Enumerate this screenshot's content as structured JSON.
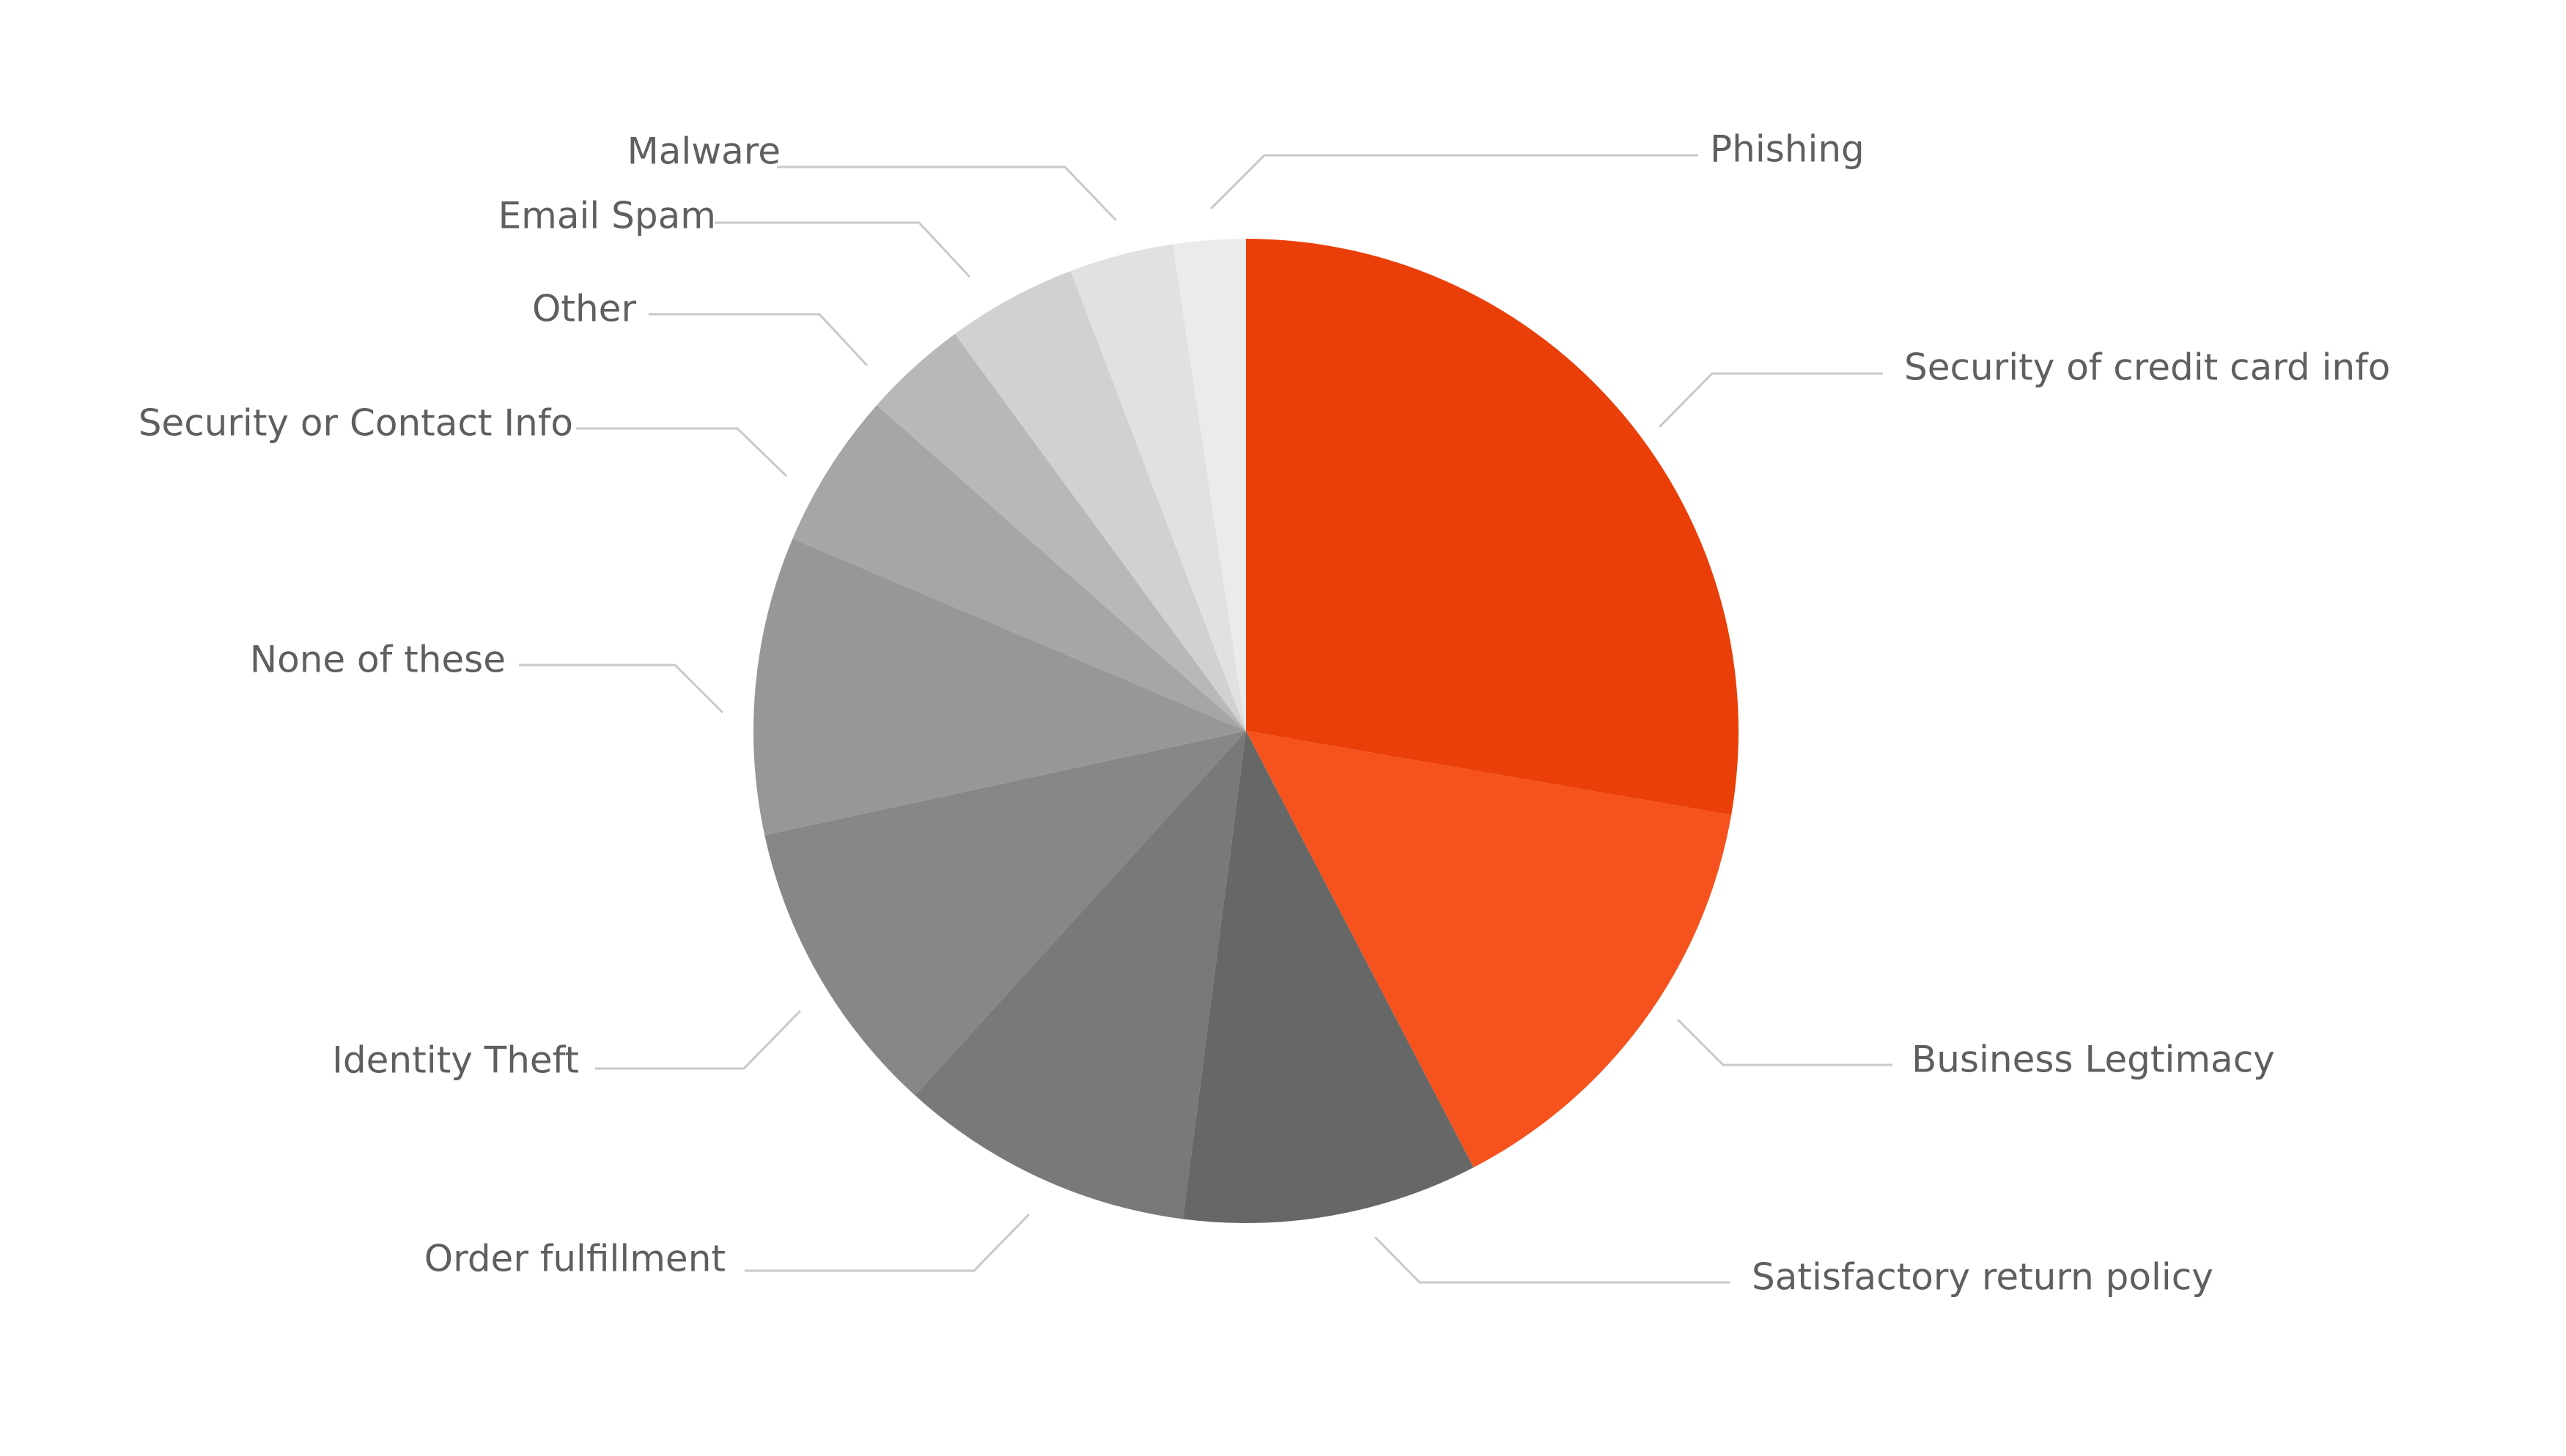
{
  "chart_data": {
    "type": "pie",
    "title": "",
    "start_angle_deg": 0,
    "direction": "clockwise",
    "slices": [
      {
        "label": "Security of credit card info",
        "value": 29.2,
        "color": "#EA3F08"
      },
      {
        "label": "Business Legtimacy",
        "value": 15.4,
        "color": "#F6521E"
      },
      {
        "label": "Satisfactory return policy",
        "value": 10.2,
        "color": "#656866"
      },
      {
        "label": "Order fulfillment",
        "value": 10.2,
        "color": "#777A78"
      },
      {
        "label": "Identity Theft",
        "value": 10.4,
        "color": "#858886"
      },
      {
        "label": "None of these",
        "value": 10.3,
        "color": "#969896"
      },
      {
        "label": "Security or Contact Info",
        "value": 5.4,
        "color": "#A5A6A5"
      },
      {
        "label": "Other",
        "value": 3.6,
        "color": "#B7B8B7"
      },
      {
        "label": "Email Spam",
        "value": 4.5,
        "color": "#D0D1D0"
      },
      {
        "label": "Malware",
        "value": 3.6,
        "color": "#E0E1E0"
      },
      {
        "label": "Phishing",
        "value": 2.5,
        "color": "#EBEBEB"
      }
    ]
  }
}
